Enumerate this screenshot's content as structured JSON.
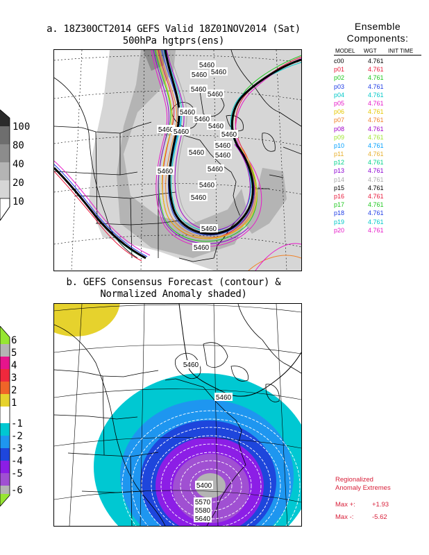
{
  "panel_a": {
    "title_line1": "a. 18Z30OCT2014 GEFS Valid 18Z01NOV2014 (Sat)",
    "title_line2": "500hPa hgtprs(ens)",
    "contour_labels": [
      "5460",
      "5460",
      "5460",
      "5460",
      "5460",
      "5460",
      "5460",
      "5460",
      "5460",
      "5460",
      "5460",
      "5460",
      "5460",
      "5460",
      "5460",
      "5460",
      "5460",
      "5460",
      "5460",
      "5460"
    ],
    "colorbar_labels": [
      "100",
      "80",
      "40",
      "20",
      "10"
    ]
  },
  "panel_b": {
    "title_line1": "b. GEFS Consensus Forecast (contour) &",
    "title_line2": "Normalized Anomaly shaded)",
    "contour_labels": [
      "5460",
      "5460",
      "5400",
      "5570",
      "5580",
      "5640"
    ],
    "colorbar_labels": [
      "6",
      "5",
      "4",
      "3",
      "2",
      "1",
      "-1",
      "-2",
      "-3",
      "-4",
      "-5",
      "-6"
    ]
  },
  "ensemble": {
    "title_line1": "Ensemble",
    "title_line2": "Components:",
    "headers": {
      "model": "MODEL",
      "wgt": "WGT",
      "init": "INIT TIME"
    },
    "members": [
      {
        "model": "c00",
        "wgt": "4.761",
        "color": "#000000"
      },
      {
        "model": "p01",
        "wgt": "4.761",
        "color": "#e8193b"
      },
      {
        "model": "p02",
        "wgt": "4.761",
        "color": "#1ec81e"
      },
      {
        "model": "p03",
        "wgt": "4.761",
        "color": "#1e3ce6"
      },
      {
        "model": "p04",
        "wgt": "4.761",
        "color": "#00c8c8"
      },
      {
        "model": "p05",
        "wgt": "4.761",
        "color": "#e619c8"
      },
      {
        "model": "p06",
        "wgt": "4.761",
        "color": "#e6c800"
      },
      {
        "model": "p07",
        "wgt": "4.761",
        "color": "#f08228"
      },
      {
        "model": "p08",
        "wgt": "4.761",
        "color": "#a000c8"
      },
      {
        "model": "p09",
        "wgt": "4.761",
        "color": "#a0e632"
      },
      {
        "model": "p10",
        "wgt": "4.761",
        "color": "#00a0ff"
      },
      {
        "model": "p11",
        "wgt": "4.761",
        "color": "#e6af2d"
      },
      {
        "model": "p12",
        "wgt": "4.761",
        "color": "#00d28c"
      },
      {
        "model": "p13",
        "wgt": "4.761",
        "color": "#8c00d2"
      },
      {
        "model": "p14",
        "wgt": "4.761",
        "color": "#aaaaaa"
      },
      {
        "model": "p15",
        "wgt": "4.761",
        "color": "#000000"
      },
      {
        "model": "p16",
        "wgt": "4.761",
        "color": "#e8193b"
      },
      {
        "model": "p17",
        "wgt": "4.761",
        "color": "#1ec81e"
      },
      {
        "model": "p18",
        "wgt": "4.761",
        "color": "#1e3ce6"
      },
      {
        "model": "p19",
        "wgt": "4.761",
        "color": "#00c8c8"
      },
      {
        "model": "p20",
        "wgt": "4.761",
        "color": "#e619c8"
      }
    ]
  },
  "anomaly_extremes": {
    "title_line1": "Regionalized",
    "title_line2": "Anomaly Extremes",
    "max_plus_label": "Max +:",
    "max_plus": "+1.93",
    "max_minus_label": "Max -:",
    "max_minus": "-5.62"
  },
  "colors": {
    "spread_light": "#d6d6d6",
    "spread_mid": "#b4b4b4",
    "spread_dark": "#8c8c8c",
    "anom_pos1": "#e6d22d",
    "anom_neg1": "#00c8d2",
    "anom_neg2": "#1e96f0",
    "anom_neg3": "#1e46dc",
    "anom_neg4": "#8c1ee6",
    "anom_neg5": "#a050d2",
    "anom_neg6": "#b4b4b4"
  }
}
